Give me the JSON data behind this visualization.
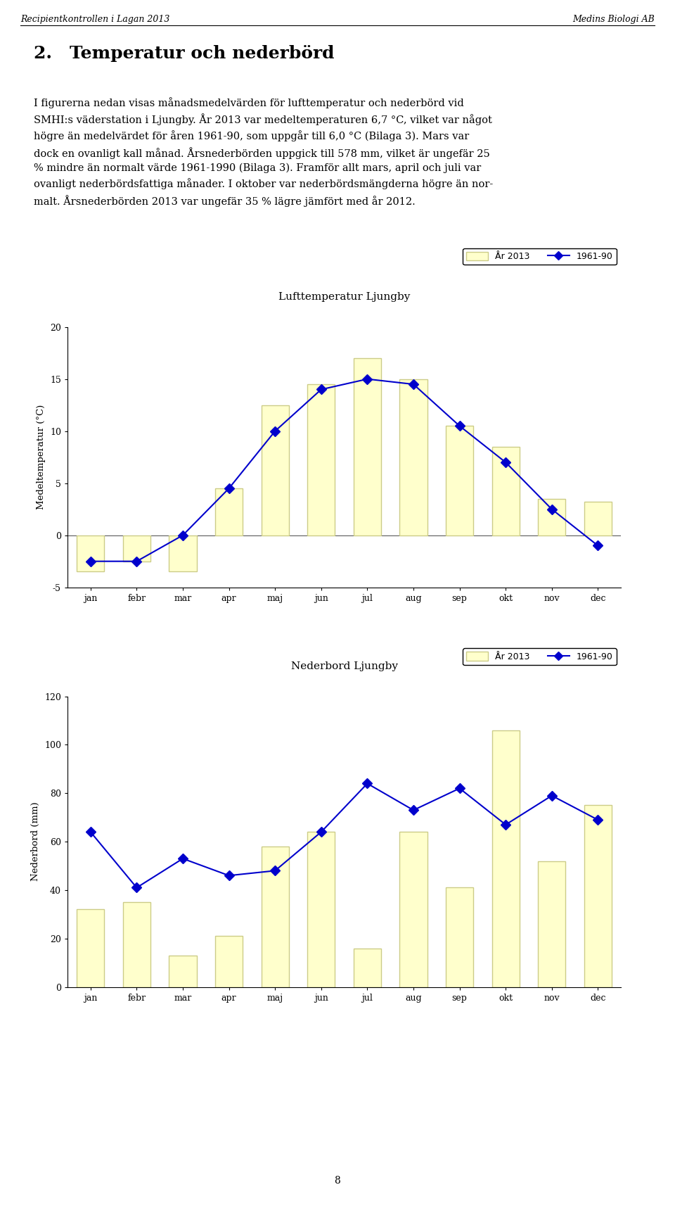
{
  "page_header_left": "Recipientkontrollen i Lagan 2013",
  "page_header_right": "Medins Biologi AB",
  "section_title": "2. Temperatur och nederbörd",
  "body_text": "I figurerna nedan visas månadsmedelvärden för lufttemperatur och nederbord vid\nSMHI:s väderstation i Ljungby. År 2013 var medeltemperaturen 6,7 °C, vilket var något\nhögre än medelvärdet för åren 1961-90, som uppgår till 6,0 °C (Bilaga 3). Mars var\ndock en ovanligt kall månad. Årsnederborden uppgick till 578 mm, vilket är ungefär 25\n% mindre än normalt värde 1961-1990 (Bilaga 3). Framför allt mars, april och juli var\novanligt nederbördsfattiga månader. I oktober var nederbördsmängderna högre än nor-\nmalt. Årsnederborden 2013 var ungefär 35 % lägre jämfört med år 2012.",
  "page_number": "8",
  "months": [
    "jan",
    "febr",
    "mar",
    "apr",
    "maj",
    "jun",
    "jul",
    "aug",
    "sep",
    "okt",
    "nov",
    "dec"
  ],
  "temp_chart": {
    "title": "Lufttemperatur Ljungby",
    "ylabel": "Medeltemperatur (°C)",
    "legend_bar": "År 2013",
    "legend_line": "1961-90",
    "ylim": [
      -5,
      20
    ],
    "yticks": [
      -5,
      0,
      5,
      10,
      15,
      20
    ],
    "bar_2013": [
      -3.5,
      -2.5,
      -3.5,
      4.5,
      12.5,
      14.5,
      17.0,
      15.0,
      10.5,
      8.5,
      3.5,
      3.2
    ],
    "line_1961_90": [
      -2.5,
      -2.5,
      0.0,
      4.5,
      10.0,
      14.0,
      15.0,
      14.5,
      10.5,
      7.0,
      2.5,
      -1.0
    ],
    "bar_color": "#FFFFCC",
    "bar_edgecolor": "#CCCC88",
    "line_color": "#0000CC",
    "line_marker": "D",
    "line_markersize": 7,
    "line_markerfacecolor": "#0000CC"
  },
  "precip_chart": {
    "title": "Nederbord Ljungby",
    "ylabel": "Nederbord (mm)",
    "legend_bar": "År 2013",
    "legend_line": "1961-90",
    "ylim": [
      0,
      120
    ],
    "yticks": [
      0,
      20,
      40,
      60,
      80,
      100,
      120
    ],
    "bar_2013": [
      32,
      35,
      13,
      21,
      58,
      64,
      16,
      64,
      41,
      106,
      52,
      75
    ],
    "line_1961_90": [
      64,
      41,
      53,
      46,
      48,
      64,
      84,
      73,
      82,
      67,
      79,
      69
    ],
    "bar_color": "#FFFFCC",
    "bar_edgecolor": "#CCCC88",
    "line_color": "#0000CC",
    "line_marker": "D",
    "line_markersize": 7,
    "line_markerfacecolor": "#0000CC"
  }
}
